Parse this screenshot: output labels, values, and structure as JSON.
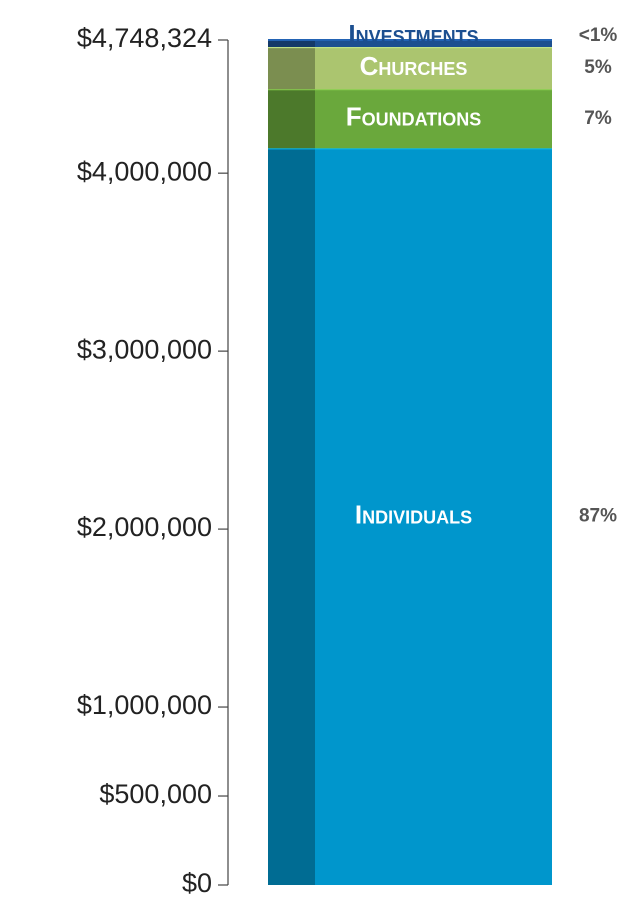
{
  "chart_data": {
    "type": "stacked_bar",
    "ylim": [
      0,
      4748324
    ],
    "yticks": [
      {
        "value": 0,
        "label": "$0"
      },
      {
        "value": 500000,
        "label": "$500,000"
      },
      {
        "value": 1000000,
        "label": "$1,000,000"
      },
      {
        "value": 2000000,
        "label": "$2,000,000"
      },
      {
        "value": 3000000,
        "label": "$3,000,000"
      },
      {
        "value": 4000000,
        "label": "$4,000,000"
      },
      {
        "value": 4748324,
        "label": "$4,748,324"
      }
    ],
    "series": [
      {
        "name": "Individuals",
        "color": "#0096cc",
        "values": [
          4139324
        ],
        "value_labels": [
          "87%"
        ]
      },
      {
        "name": "Foundations",
        "color": "#6aa83c",
        "values": [
          332000
        ],
        "value_labels": [
          "7%"
        ]
      },
      {
        "name": "Churches",
        "color": "#abc56f",
        "values": [
          237000
        ],
        "value_labels": [
          "5%"
        ]
      },
      {
        "name": "Investments",
        "color": "#1c4f90",
        "values": [
          40000
        ],
        "value_labels": [
          "<1%"
        ]
      }
    ]
  }
}
